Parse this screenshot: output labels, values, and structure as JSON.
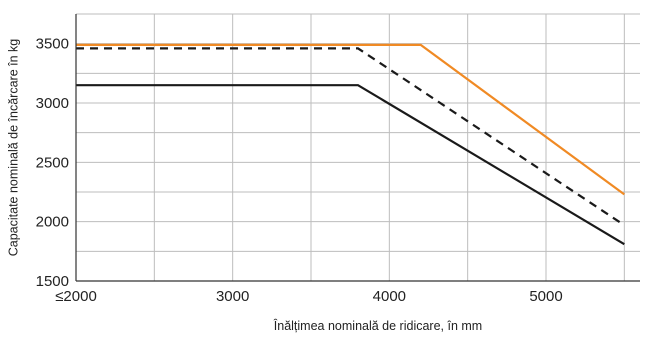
{
  "chart_data": {
    "type": "line",
    "title": "",
    "xlabel": "Înălțimea nominală de ridicare, în mm",
    "ylabel": "Capacitate nominală de încărcare în kg",
    "xlim": [
      2000,
      5600
    ],
    "ylim": [
      1500,
      3750
    ],
    "x_ticks": [
      2000,
      3000,
      4000,
      5000
    ],
    "x_tick_labels": [
      "≤2000",
      "3000",
      "4000",
      "5000"
    ],
    "x_grid": [
      2000,
      2500,
      3000,
      3500,
      4000,
      4500,
      5000,
      5500
    ],
    "y_ticks": [
      1500,
      2000,
      2500,
      3000,
      3500
    ],
    "y_tick_labels": [
      "1500",
      "2000",
      "2500",
      "3000",
      "3500"
    ],
    "y_grid": [
      1500,
      1750,
      2000,
      2250,
      2500,
      2750,
      3000,
      3250,
      3500,
      3750
    ],
    "grid": true,
    "legend": "none",
    "series": [
      {
        "color": "#f08a24",
        "style": "solid",
        "x": [
          2000,
          4200,
          5500
        ],
        "y": [
          3490,
          3490,
          2230
        ]
      },
      {
        "color": "#1a1a1a",
        "style": "dashed",
        "x": [
          2000,
          3800,
          5500
        ],
        "y": [
          3460,
          3460,
          1970
        ]
      },
      {
        "color": "#1a1a1a",
        "style": "solid",
        "x": [
          2000,
          3800,
          5500
        ],
        "y": [
          3150,
          3150,
          1810
        ]
      }
    ]
  }
}
